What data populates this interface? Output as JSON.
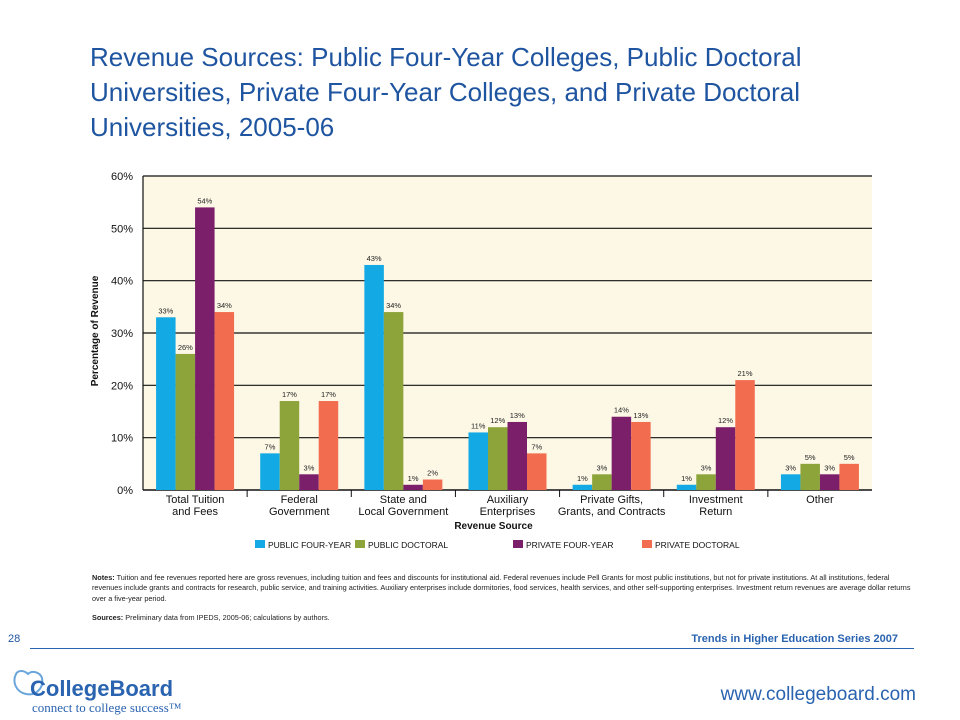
{
  "title": "Revenue Sources: Public Four-Year Colleges, Public Doctoral Universities, Private Four-Year Colleges, and Private Doctoral Universities, 2005-06",
  "chart_data": {
    "type": "bar",
    "categories": [
      [
        "Total Tuition",
        "and Fees"
      ],
      [
        "Federal",
        "Government"
      ],
      [
        "State and",
        "Local Government"
      ],
      [
        "Auxiliary",
        "Enterprises"
      ],
      [
        "Private Gifts,",
        "Grants, and Contracts"
      ],
      [
        "Investment",
        "Return"
      ],
      [
        "Other"
      ]
    ],
    "series": [
      {
        "name": "PUBLIC FOUR-YEAR",
        "color": "#13a9e4",
        "values": [
          33,
          7,
          43,
          11,
          1,
          1,
          3
        ]
      },
      {
        "name": "PUBLIC DOCTORAL",
        "color": "#8ca43a",
        "values": [
          26,
          17,
          34,
          12,
          3,
          3,
          5
        ]
      },
      {
        "name": "PRIVATE FOUR-YEAR",
        "color": "#7b1f6b",
        "values": [
          54,
          3,
          1,
          13,
          14,
          12,
          3
        ]
      },
      {
        "name": "PRIVATE DOCTORAL",
        "color": "#f26c4f",
        "values": [
          34,
          17,
          2,
          7,
          13,
          21,
          5
        ]
      }
    ],
    "yticks": [
      "0%",
      "10%",
      "20%",
      "30%",
      "40%",
      "50%",
      "60%"
    ],
    "ylim": [
      0,
      60
    ],
    "xlabel": "Revenue Source",
    "ylabel": "Percentage of Revenue",
    "legend_placement": "bottom",
    "plot_background": "#fdf8e6"
  },
  "notes": {
    "label": "Notes:",
    "text": "Tuition and fee revenues reported here are gross revenues, including tuition and fees and discounts for institutional aid. Federal revenues include Pell Grants for most public institutions, but not for private institutions. At all institutions, federal revenues include grants and contracts for research, public service, and training activities. Auxiliary enterprises include dormitories, food services, health services, and other self-supporting enterprises. Investment return revenues are average dollar returns over a five-year period."
  },
  "sources": {
    "label": "Sources:",
    "text": "Preliminary data from IPEDS, 2005-06; calculations by authors."
  },
  "footer": {
    "page_number": "28",
    "series_label": "Trends in Higher Education Series 2007",
    "logo_name": "CollegeBoard",
    "logo_tagline": "connect to college success™",
    "url": "www.collegeboard.com"
  }
}
